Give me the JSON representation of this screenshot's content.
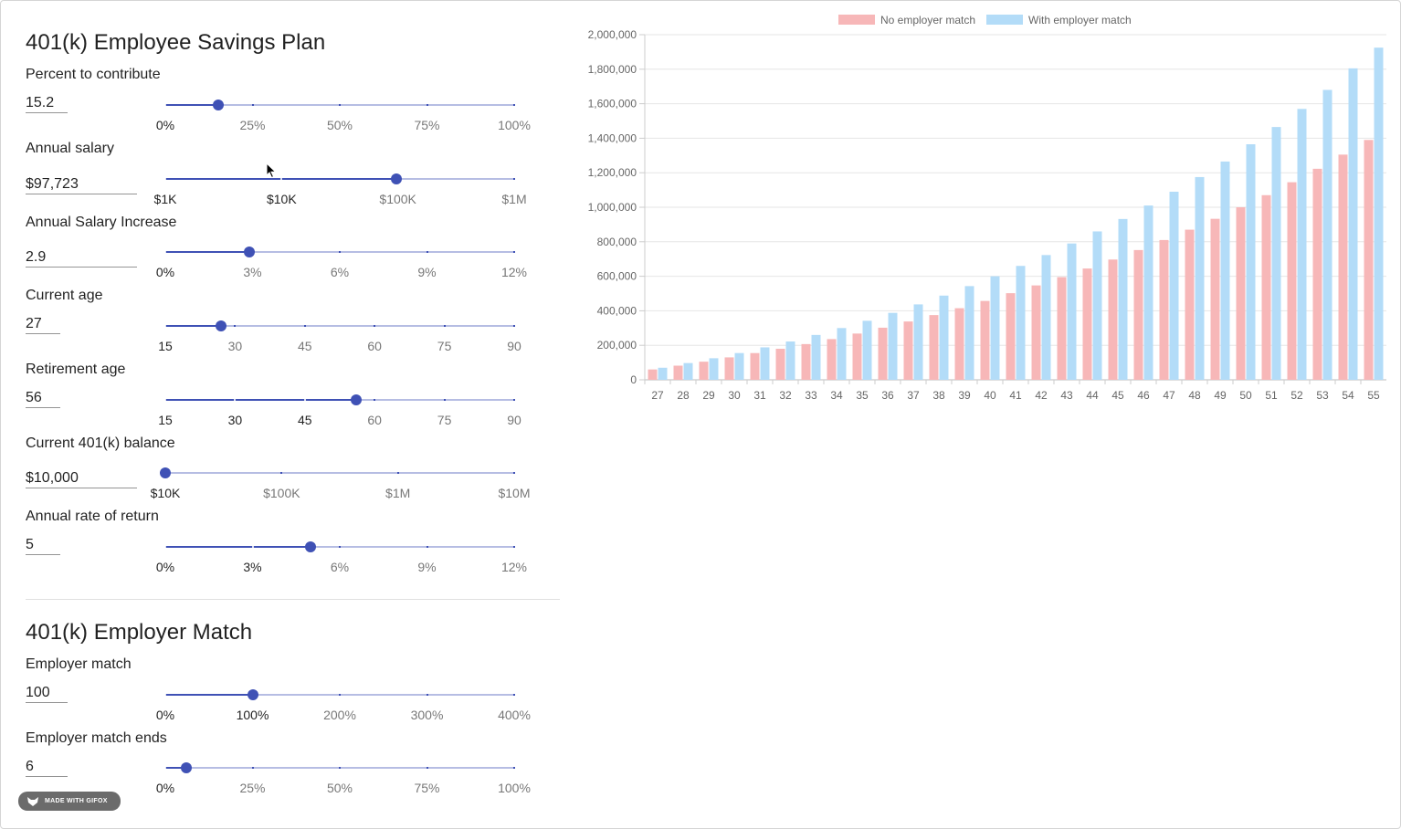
{
  "employee_section": {
    "title": "401(k) Employee Savings Plan",
    "fields": [
      {
        "key": "percent",
        "label": "Percent to contribute",
        "value": "15.2",
        "slider_value": 0.152,
        "marks": [
          "0%",
          "25%",
          "50%",
          "75%",
          "100%"
        ]
      },
      {
        "key": "salary",
        "label": "Annual salary",
        "value": "$97,723",
        "slider_value": 0.663,
        "marks": [
          "$1K",
          "$10K",
          "$100K",
          "$1M"
        ]
      },
      {
        "key": "increase",
        "label": "Annual Salary Increase",
        "value": "2.9",
        "slider_value": 0.2417,
        "marks": [
          "0%",
          "3%",
          "6%",
          "9%",
          "12%"
        ]
      },
      {
        "key": "age",
        "label": "Current age",
        "value": "27",
        "slider_value": 0.16,
        "marks": [
          "15",
          "30",
          "45",
          "60",
          "75",
          "90"
        ]
      },
      {
        "key": "retirement",
        "label": "Retirement age",
        "value": "56",
        "slider_value": 0.5467,
        "marks": [
          "15",
          "30",
          "45",
          "60",
          "75",
          "90"
        ]
      },
      {
        "key": "balance",
        "label": "Current 401(k) balance",
        "value": "$10,000",
        "slider_value": 0.0,
        "marks": [
          "$10K",
          "$100K",
          "$1M",
          "$10M"
        ]
      },
      {
        "key": "return",
        "label": "Annual rate of return",
        "value": "5",
        "slider_value": 0.4167,
        "marks": [
          "0%",
          "3%",
          "6%",
          "9%",
          "12%"
        ]
      }
    ]
  },
  "employer_section": {
    "title": "401(k) Employer Match",
    "fields": [
      {
        "key": "match",
        "label": "Employer match",
        "value": "100",
        "slider_value": 0.25,
        "marks": [
          "0%",
          "100%",
          "200%",
          "300%",
          "400%"
        ]
      },
      {
        "key": "match_ends",
        "label": "Employer match ends",
        "value": "6",
        "slider_value": 0.06,
        "marks": [
          "0%",
          "25%",
          "50%",
          "75%",
          "100%"
        ]
      }
    ]
  },
  "chart_data": {
    "type": "bar",
    "title": "",
    "xlabel": "",
    "ylabel": "",
    "ylim": [
      0,
      2000000
    ],
    "yticks": [
      0,
      200000,
      400000,
      600000,
      800000,
      1000000,
      1200000,
      1400000,
      1600000,
      1800000,
      2000000
    ],
    "ytick_labels": [
      "0",
      "200,000",
      "400,000",
      "600,000",
      "800,000",
      "1,000,000",
      "1,200,000",
      "1,400,000",
      "1,600,000",
      "1,800,000",
      "2,000,000"
    ],
    "legend_position": "top-center",
    "categories": [
      "27",
      "28",
      "29",
      "30",
      "31",
      "32",
      "33",
      "34",
      "35",
      "36",
      "37",
      "38",
      "39",
      "40",
      "41",
      "42",
      "43",
      "44",
      "45",
      "46",
      "47",
      "48",
      "49",
      "50",
      "51",
      "52",
      "53",
      "54",
      "55"
    ],
    "series": [
      {
        "name": "No employer match",
        "color": "#f7b7b8",
        "values": [
          60000,
          82000,
          105000,
          130000,
          155000,
          180000,
          207000,
          236000,
          268000,
          302000,
          338000,
          375000,
          415000,
          457000,
          502000,
          547000,
          595000,
          645000,
          697000,
          752000,
          810000,
          870000,
          933000,
          1000000,
          1070000,
          1145000,
          1223000,
          1305000,
          1390000
        ]
      },
      {
        "name": "With employer match",
        "color": "#b3dcf8",
        "values": [
          70000,
          97000,
          125000,
          155000,
          188000,
          222000,
          260000,
          300000,
          342000,
          388000,
          437000,
          488000,
          543000,
          600000,
          660000,
          723000,
          790000,
          860000,
          932000,
          1010000,
          1090000,
          1175000,
          1265000,
          1365000,
          1465000,
          1570000,
          1680000,
          1805000,
          1925000
        ]
      }
    ]
  },
  "badge": {
    "label": "MADE WITH GIFOX"
  }
}
